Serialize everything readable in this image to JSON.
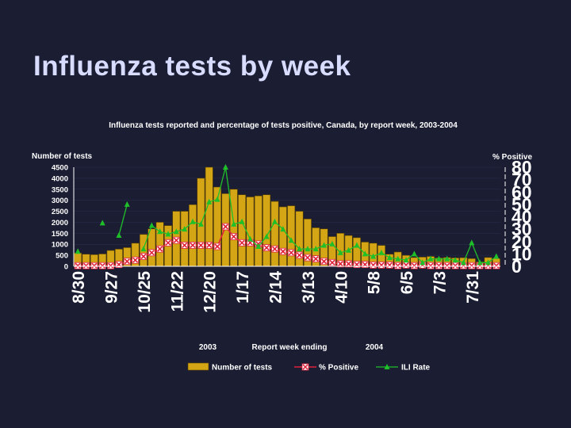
{
  "slide": {
    "title": "Influenza tests by week"
  },
  "chart_data": {
    "type": "bar",
    "title": "Influenza tests reported and percentage of tests positive, Canada, by report week, 2003-2004",
    "xlabel": "Report week ending",
    "year_labels": [
      "2003",
      "2004"
    ],
    "ylabel_left": "Number of tests",
    "ylabel_right": "% Positive",
    "ylim_left": [
      0,
      4500
    ],
    "yticks_left": [
      "0",
      "500",
      "1000",
      "1500",
      "2000",
      "2500",
      "3000",
      "3500",
      "4000",
      "4500"
    ],
    "ylim_right": [
      0,
      80
    ],
    "yticks_right": [
      "0",
      "10",
      "20",
      "30",
      "40",
      "50",
      "60",
      "70",
      "80"
    ],
    "x_tick_labels": [
      "8/30",
      "9/27",
      "10/25",
      "11/22",
      "12/20",
      "1/17",
      "2/14",
      "3/13",
      "4/10",
      "5/8",
      "6/5",
      "7/3",
      "7/31"
    ],
    "x_tick_week_index": [
      0,
      4,
      8,
      12,
      16,
      20,
      24,
      28,
      32,
      36,
      40,
      44,
      48
    ],
    "week_count": 52,
    "legend": [
      "Number of tests",
      "% Positive",
      "ILI Rate"
    ],
    "legend_position": "bottom",
    "colors": {
      "bars": "#d4a514",
      "bar_edge": "#5a4300",
      "positive": "#e0213a",
      "ili": "#1fbf2a",
      "background": "#1b1d33",
      "title": "#d8dcff"
    },
    "series": [
      {
        "name": "Number of tests",
        "values": [
          600,
          550,
          530,
          560,
          720,
          780,
          850,
          1050,
          1450,
          1700,
          2000,
          1850,
          2500,
          2500,
          2800,
          4000,
          4500,
          3600,
          3300,
          3500,
          3250,
          3150,
          3200,
          3250,
          2950,
          2700,
          2750,
          2500,
          2150,
          1750,
          1700,
          1350,
          1500,
          1400,
          1300,
          1100,
          1050,
          950,
          550,
          650,
          500,
          400,
          420,
          450,
          380,
          400,
          380,
          390,
          350,
          200,
          400,
          350
        ]
      },
      {
        "name": "% Positive",
        "values": [
          0.5,
          0.5,
          0.5,
          0.5,
          0.5,
          1.5,
          4,
          5,
          8,
          11,
          14,
          19,
          21,
          17,
          17,
          17,
          17,
          16,
          32,
          24,
          19,
          19,
          18,
          15,
          14,
          12,
          11,
          9,
          7,
          6,
          4,
          3,
          2,
          2,
          1.5,
          1.5,
          1,
          1,
          1,
          0.5,
          1,
          0.5,
          1,
          0.5,
          0.5,
          0.5,
          0.5,
          0.5,
          0.5,
          0.5,
          0.5,
          0.5
        ]
      },
      {
        "name": "ILI Rate",
        "values": [
          12,
          null,
          null,
          35,
          null,
          25,
          50,
          null,
          14,
          33,
          28,
          26,
          28,
          30,
          36,
          34,
          52,
          54,
          80,
          34,
          36,
          22,
          16,
          24,
          36,
          30,
          21,
          14,
          14,
          14,
          17,
          18,
          11,
          13,
          17,
          10,
          8,
          11,
          7,
          6,
          5,
          10,
          3,
          6,
          6,
          6,
          5,
          3,
          19,
          3,
          3,
          8
        ]
      }
    ]
  }
}
